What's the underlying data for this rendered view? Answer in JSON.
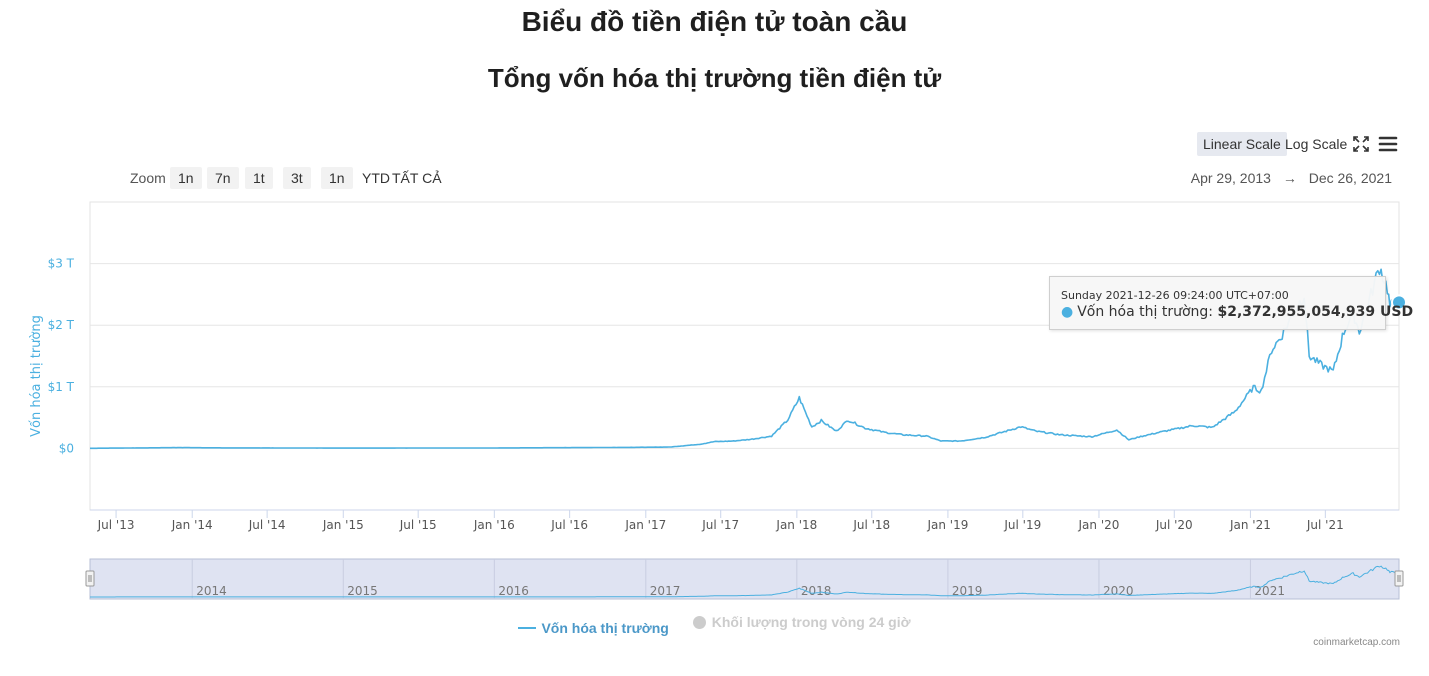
{
  "page": {
    "title": "Biểu đồ tiền điện tử toàn cầu"
  },
  "toolbar": {
    "linear_scale": "Linear Scale",
    "log_scale": "Log Scale",
    "fullscreen_icon": "fullscreen-icon",
    "menu_icon": "hamburger-menu-icon"
  },
  "zoom": {
    "label": "Zoom",
    "buttons": [
      "1n",
      "7n",
      "1t",
      "3t",
      "1n",
      "YTD",
      "TẤT CẢ"
    ]
  },
  "range": {
    "from": "Apr 29, 2013",
    "arrow": "→",
    "to": "Dec 26, 2021"
  },
  "tooltip": {
    "date": "Sunday 2021-12-26 09:24:00 UTC+07:00",
    "series": "Vốn hóa thị trường:",
    "value": "$2,372,955,054,939 USD"
  },
  "legend": {
    "items": [
      {
        "label": "Vốn hóa thị trường",
        "color": "#4bb0e0",
        "active": true
      },
      {
        "label": "Khối lượng trong vòng 24 giờ",
        "color": "#cccccc",
        "active": false
      }
    ]
  },
  "credit": "coinmarketcap.com",
  "colors": {
    "series": "#4bb0e0",
    "axis_title": "#4bb0e0",
    "navigator_mask": "#dfe3f2"
  },
  "chart_data": {
    "type": "line",
    "title": "Tổng vốn hóa thị trường tiền điện tử",
    "ylabel": "Vốn hóa thị trường",
    "xlabel": "",
    "y_unit": "trillion USD",
    "ylim": [
      -1,
      4
    ],
    "y_ticks": [
      0,
      1,
      2,
      3
    ],
    "y_tick_labels": [
      "$0",
      "$1 T",
      "$2 T",
      "$3 T"
    ],
    "xlim": [
      "2013-04-29",
      "2021-12-26"
    ],
    "x_ticks": [
      "2013-07-01",
      "2014-01-01",
      "2014-07-01",
      "2015-01-01",
      "2015-07-01",
      "2016-01-01",
      "2016-07-01",
      "2017-01-01",
      "2017-07-01",
      "2018-01-01",
      "2018-07-01",
      "2019-01-01",
      "2019-07-01",
      "2020-01-01",
      "2020-07-01",
      "2021-01-01",
      "2021-07-01"
    ],
    "x_tick_labels": [
      "Jul '13",
      "Jan '14",
      "Jul '14",
      "Jan '15",
      "Jul '15",
      "Jan '16",
      "Jul '16",
      "Jan '17",
      "Jul '17",
      "Jan '18",
      "Jul '18",
      "Jan '19",
      "Jul '19",
      "Jan '20",
      "Jul '20",
      "Jan '21",
      "Jul '21"
    ],
    "navigator_labels": [
      "2014",
      "2015",
      "2016",
      "2017",
      "2018",
      "2019",
      "2020",
      "2021"
    ],
    "navigator_ticks": [
      "2014-01-01",
      "2015-01-01",
      "2016-01-01",
      "2017-01-01",
      "2018-01-01",
      "2019-01-01",
      "2020-01-01",
      "2021-01-01"
    ],
    "grid": true,
    "legend_position": "bottom",
    "series": [
      {
        "name": "Vốn hóa thị trường",
        "x": [
          "2013-04-29",
          "2013-12-01",
          "2014-03-01",
          "2015-01-01",
          "2016-01-01",
          "2016-12-01",
          "2017-03-01",
          "2017-05-15",
          "2017-06-15",
          "2017-08-01",
          "2017-09-15",
          "2017-11-01",
          "2017-12-10",
          "2018-01-07",
          "2018-02-06",
          "2018-03-01",
          "2018-04-06",
          "2018-05-05",
          "2018-06-15",
          "2018-08-01",
          "2018-09-15",
          "2018-11-10",
          "2018-12-15",
          "2019-02-01",
          "2019-04-01",
          "2019-06-26",
          "2019-08-01",
          "2019-10-01",
          "2019-12-15",
          "2020-02-13",
          "2020-03-13",
          "2020-04-15",
          "2020-06-01",
          "2020-08-15",
          "2020-10-01",
          "2020-11-25",
          "2021-01-08",
          "2021-01-27",
          "2021-02-21",
          "2021-03-15",
          "2021-04-15",
          "2021-05-11",
          "2021-05-23",
          "2021-06-22",
          "2021-07-20",
          "2021-08-15",
          "2021-09-06",
          "2021-09-21",
          "2021-10-15",
          "2021-11-09",
          "2021-11-28",
          "2021-12-04",
          "2021-12-26"
        ],
        "y": [
          0.0015,
          0.013,
          0.009,
          0.005,
          0.007,
          0.017,
          0.022,
          0.07,
          0.11,
          0.12,
          0.15,
          0.2,
          0.46,
          0.82,
          0.35,
          0.45,
          0.28,
          0.46,
          0.33,
          0.26,
          0.22,
          0.2,
          0.12,
          0.12,
          0.18,
          0.35,
          0.28,
          0.22,
          0.19,
          0.3,
          0.14,
          0.2,
          0.27,
          0.37,
          0.34,
          0.6,
          0.99,
          0.93,
          1.6,
          1.8,
          2.2,
          2.5,
          1.5,
          1.35,
          1.25,
          1.9,
          2.2,
          1.9,
          2.4,
          2.95,
          2.6,
          2.3,
          2.37
        ]
      },
      {
        "name": "Khối lượng trong vòng 24 giờ",
        "x": [],
        "y": []
      }
    ]
  }
}
